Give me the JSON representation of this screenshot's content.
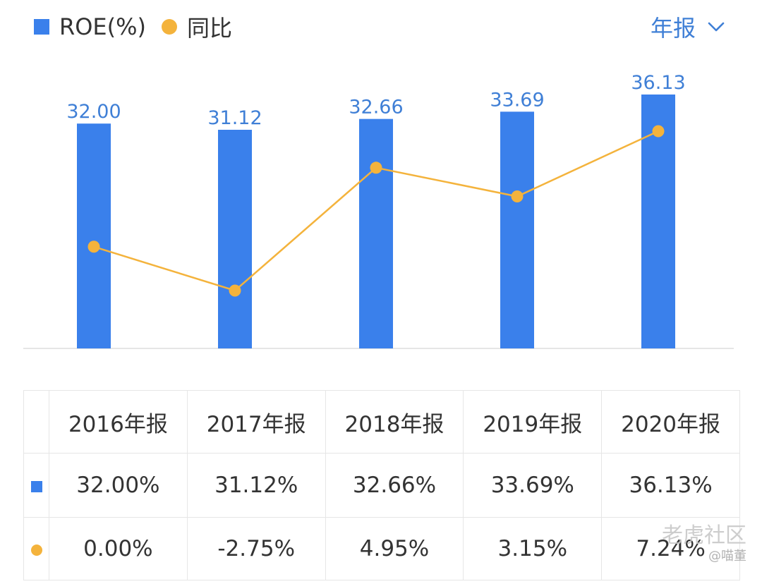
{
  "legend": {
    "roe_label": "ROE(%)",
    "yoy_label": "同比"
  },
  "period_select": {
    "value": "年报"
  },
  "colors": {
    "bar": "#3a80eb",
    "line": "#f4b33c",
    "label": "#3f7fd6",
    "negative": "#1ea35a",
    "positive": "#e04848"
  },
  "chart_data": {
    "type": "bar",
    "title": "",
    "categories": [
      "2016年报",
      "2017年报",
      "2018年报",
      "2019年报",
      "2020年报"
    ],
    "series": [
      {
        "name": "ROE(%)",
        "type": "bar",
        "values": [
          32.0,
          31.12,
          32.66,
          33.69,
          36.13
        ],
        "labels": [
          "32.00",
          "31.12",
          "32.66",
          "33.69",
          "36.13"
        ]
      },
      {
        "name": "同比",
        "type": "line",
        "values": [
          0.0,
          -2.75,
          4.95,
          3.15,
          7.24
        ]
      }
    ],
    "ylim_bar": [
      0,
      36.13
    ],
    "ylim_line": [
      -2.75,
      7.24
    ],
    "xlabel": "",
    "ylabel": "",
    "grid": false,
    "legend": "top-left"
  },
  "table": {
    "headers": [
      "2016年报",
      "2017年报",
      "2018年报",
      "2019年报",
      "2020年报"
    ],
    "roe_row": [
      "32.00%",
      "31.12%",
      "32.66%",
      "33.69%",
      "36.13%"
    ],
    "yoy_row": [
      {
        "text": "0.00%",
        "sign": "neutral"
      },
      {
        "text": "-2.75%",
        "sign": "neg"
      },
      {
        "text": "4.95%",
        "sign": "pos"
      },
      {
        "text": "3.15%",
        "sign": "pos"
      },
      {
        "text": "7.24%",
        "sign": "pos"
      }
    ]
  },
  "watermark": {
    "brand": "老虎社区",
    "user": "@喵董"
  }
}
